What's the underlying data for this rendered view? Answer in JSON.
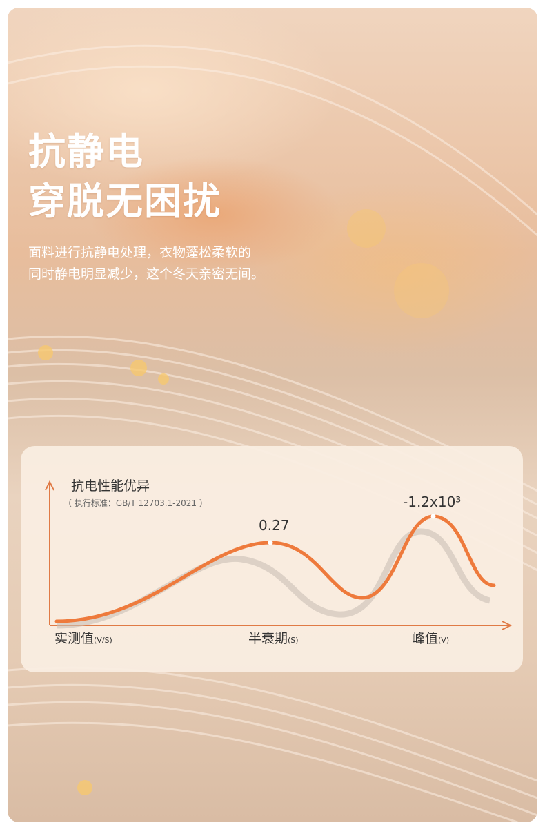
{
  "headline": {
    "line1": "抗静电",
    "line2": "穿脱无困扰"
  },
  "description": {
    "line1": "面料进行抗静电处理，衣物蓬松柔软的",
    "line2": "同时静电明显减少，这个冬天亲密无间。"
  },
  "chart_data": {
    "type": "line",
    "title": "抗电性能优异",
    "subtitle": "（ 执行标准：GB/T 12703.1-2021 ）",
    "categories": [
      {
        "label": "实测值",
        "unit": "(V/S)"
      },
      {
        "label": "半衰期",
        "unit": "(S)"
      },
      {
        "label": "峰值",
        "unit": "(V)"
      }
    ],
    "annotations": [
      {
        "category": "半衰期",
        "value": "0.27"
      },
      {
        "category": "峰值",
        "value": "-1.2x10³"
      }
    ],
    "colors": {
      "line": "#ee7a3c",
      "shadow": "#c9c0b6",
      "axis": "#e07a45"
    }
  }
}
